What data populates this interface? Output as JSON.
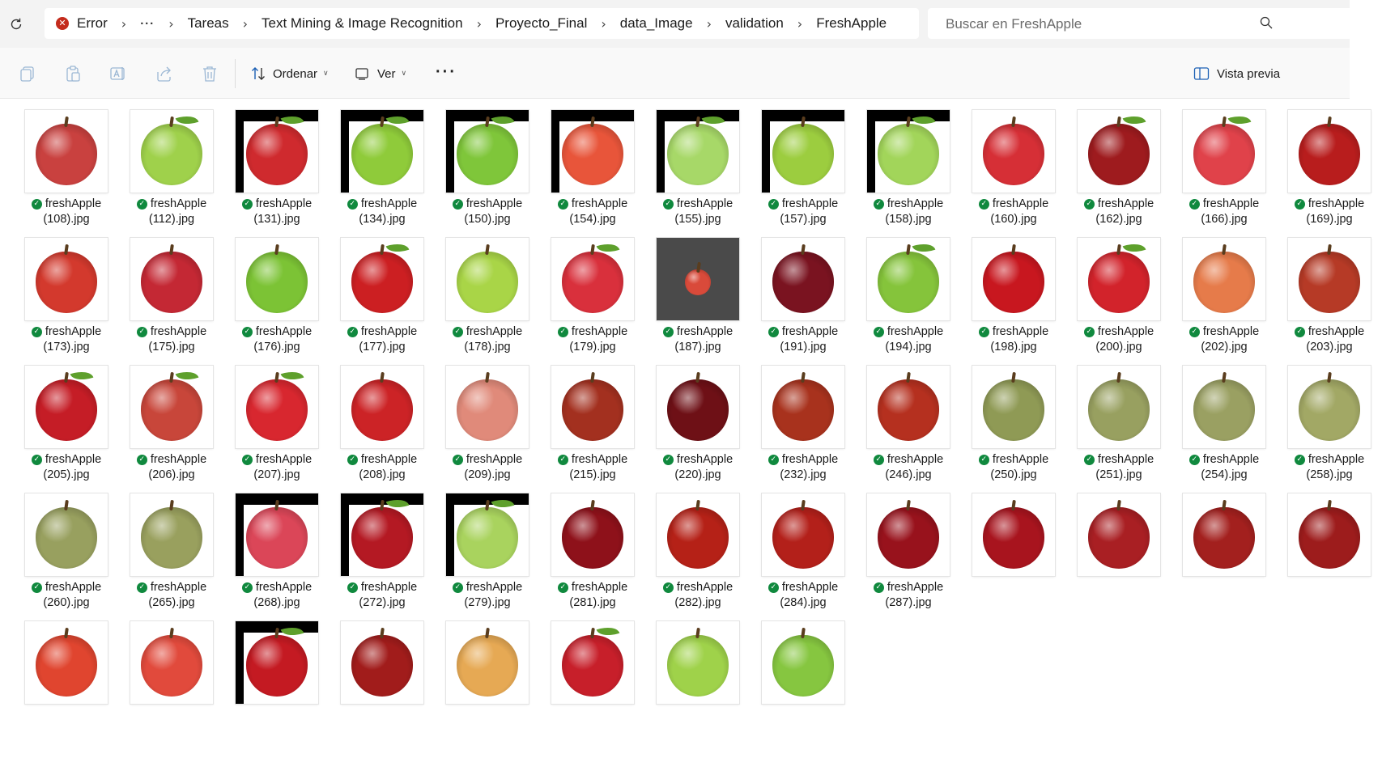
{
  "addressbar": {
    "status_label": "Error",
    "overflow_label": "···",
    "separator": "›",
    "crumbs": [
      "Tareas",
      "Text Mining & Image Recognition",
      "Proyecto_Final",
      "data_Image",
      "validation",
      "FreshApple"
    ],
    "search_placeholder": "Buscar en FreshApple"
  },
  "toolbar": {
    "sort_label": "Ordenar",
    "view_label": "Ver",
    "more_label": "···",
    "preview_label": "Vista previa",
    "dropdown_chevron": "∨"
  },
  "file_prefix": "freshApple",
  "files": [
    {
      "name": "(108).jpg",
      "color": "#c9413f"
    },
    {
      "name": "(112).jpg",
      "color": "#9fd14b",
      "leaf": true
    },
    {
      "name": "(131).jpg",
      "color": "#cf2a2e",
      "frame": true,
      "leaf": true
    },
    {
      "name": "(134).jpg",
      "color": "#8fcb3a",
      "frame": true,
      "leaf": true
    },
    {
      "name": "(150).jpg",
      "color": "#7fc63a",
      "frame": true,
      "leaf": true
    },
    {
      "name": "(154).jpg",
      "color": "#e8553a",
      "frame": true
    },
    {
      "name": "(155).jpg",
      "color": "#a7d868",
      "frame": true,
      "leaf": true
    },
    {
      "name": "(157).jpg",
      "color": "#9ccd3f",
      "frame": true
    },
    {
      "name": "(158).jpg",
      "color": "#a2d55a",
      "frame": true,
      "leaf": true
    },
    {
      "name": "(160).jpg",
      "color": "#d62f36"
    },
    {
      "name": "(162).jpg",
      "color": "#9e1b1e",
      "leaf": true
    },
    {
      "name": "(166).jpg",
      "color": "#e0424a",
      "leaf": true
    },
    {
      "name": "(169).jpg",
      "color": "#b81d1d"
    },
    {
      "name": "(173).jpg",
      "color": "#d3392d"
    },
    {
      "name": "(175).jpg",
      "color": "#c42834"
    },
    {
      "name": "(176).jpg",
      "color": "#7cc335"
    },
    {
      "name": "(177).jpg",
      "color": "#cc1f22",
      "leaf": true
    },
    {
      "name": "(178).jpg",
      "color": "#a9d547"
    },
    {
      "name": "(179).jpg",
      "color": "#d9303c",
      "leaf": true
    },
    {
      "name": "(187).jpg",
      "color": "#d94a3a",
      "photo": true
    },
    {
      "name": "(191).jpg",
      "color": "#7a1320"
    },
    {
      "name": "(194).jpg",
      "color": "#85c43b",
      "leaf": true
    },
    {
      "name": "(198).jpg",
      "color": "#c8171f"
    },
    {
      "name": "(200).jpg",
      "color": "#d2232b",
      "leaf": true
    },
    {
      "name": "(202).jpg",
      "color": "#e67b4a"
    },
    {
      "name": "(203).jpg",
      "color": "#b63a26"
    },
    {
      "name": "(205).jpg",
      "color": "#c51d26",
      "leaf": true
    },
    {
      "name": "(206).jpg",
      "color": "#c8463a",
      "leaf": true
    },
    {
      "name": "(207).jpg",
      "color": "#d8272f",
      "leaf": true
    },
    {
      "name": "(208).jpg",
      "color": "#cc2326"
    },
    {
      "name": "(209).jpg",
      "color": "#e08a7a"
    },
    {
      "name": "(215).jpg",
      "color": "#a3301f"
    },
    {
      "name": "(220).jpg",
      "color": "#6e1016"
    },
    {
      "name": "(232).jpg",
      "color": "#a8321d"
    },
    {
      "name": "(246).jpg",
      "color": "#b5301f"
    },
    {
      "name": "(250).jpg",
      "color": "#8f9a55"
    },
    {
      "name": "(251).jpg",
      "color": "#98a060"
    },
    {
      "name": "(254).jpg",
      "color": "#9aa062"
    },
    {
      "name": "(258).jpg",
      "color": "#a2a865"
    },
    {
      "name": "(260).jpg",
      "color": "#98a05f"
    },
    {
      "name": "(265).jpg",
      "color": "#99a05e"
    },
    {
      "name": "(268).jpg",
      "color": "#db4658",
      "frame": true
    },
    {
      "name": "(272).jpg",
      "color": "#b41923",
      "frame": true,
      "leaf": true
    },
    {
      "name": "(279).jpg",
      "color": "#a9d35e",
      "frame": true,
      "leaf": true
    },
    {
      "name": "(281).jpg",
      "color": "#8e111a"
    },
    {
      "name": "(282).jpg",
      "color": "#b52117"
    },
    {
      "name": "(284).jpg",
      "color": "#b3201a"
    },
    {
      "name": "(287).jpg",
      "color": "#98121c"
    },
    {
      "color": "#a8141e"
    },
    {
      "color": "#a91f23"
    },
    {
      "color": "#a3201e"
    },
    {
      "color": "#9d1c1c"
    },
    {
      "color": "#e0452f"
    },
    {
      "color": "#e14a3c"
    },
    {
      "color": "#c41a22",
      "frame": true,
      "leaf": true
    },
    {
      "color": "#a11c1b"
    },
    {
      "color": "#e6a954"
    },
    {
      "color": "#c71f2a",
      "leaf": true
    },
    {
      "color": "#9fd24a"
    },
    {
      "color": "#86c640"
    }
  ]
}
